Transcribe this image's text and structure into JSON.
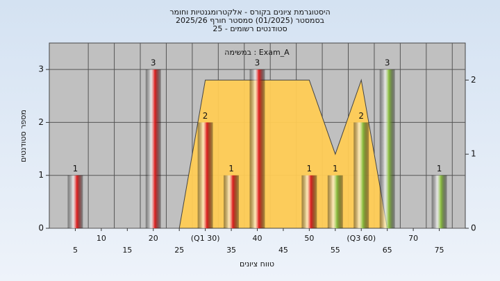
{
  "chart_data": {
    "type": "bar",
    "title": [
      "היסטוגרמת ציונים בקורס - אלקטרומגנטיות וחומר",
      "בסמסטר  (01/2025)  סמסטר חורף 2025/26",
      "סטודנטים רשומים - 25"
    ],
    "annotation": "במשימה : Exam_A",
    "x_label": "טווח ציונים",
    "y_label": "מספר סטודנטים",
    "x": [
      5,
      10,
      15,
      20,
      25,
      30,
      35,
      40,
      45,
      50,
      55,
      60,
      65,
      70,
      75
    ],
    "values": [
      1,
      0,
      0,
      3,
      0,
      2,
      1,
      3,
      0,
      1,
      1,
      2,
      3,
      0,
      1
    ],
    "colors": [
      "#e02020",
      "#e02020",
      "#e02020",
      "#e02020",
      "#e02020",
      "#e02020",
      "#e02020",
      "#e02020",
      "#e02020",
      "#e02020",
      "#8cc040",
      "#8cc040",
      "#8cc040",
      "#8cc040",
      "#8cc040"
    ],
    "xlim": [
      0,
      80
    ],
    "xticks": [
      5,
      10,
      15,
      20,
      25,
      {
        "value": 30,
        "label": "(Q1 30)"
      },
      35,
      40,
      45,
      50,
      55,
      {
        "value": 60,
        "label": "(Q3 60)"
      },
      65,
      70,
      75
    ],
    "ylim": [
      0,
      3.5
    ],
    "yticks": [
      0,
      1,
      2,
      3
    ],
    "y2lim": [
      0,
      2.5
    ],
    "y2ticks": [
      0,
      1,
      2
    ],
    "area": {
      "axis": "y2",
      "color": "#ffcc55",
      "x": [
        25,
        30,
        50,
        55,
        60,
        65
      ],
      "values": [
        0,
        2,
        2,
        1,
        2,
        0
      ]
    },
    "grid": true
  }
}
